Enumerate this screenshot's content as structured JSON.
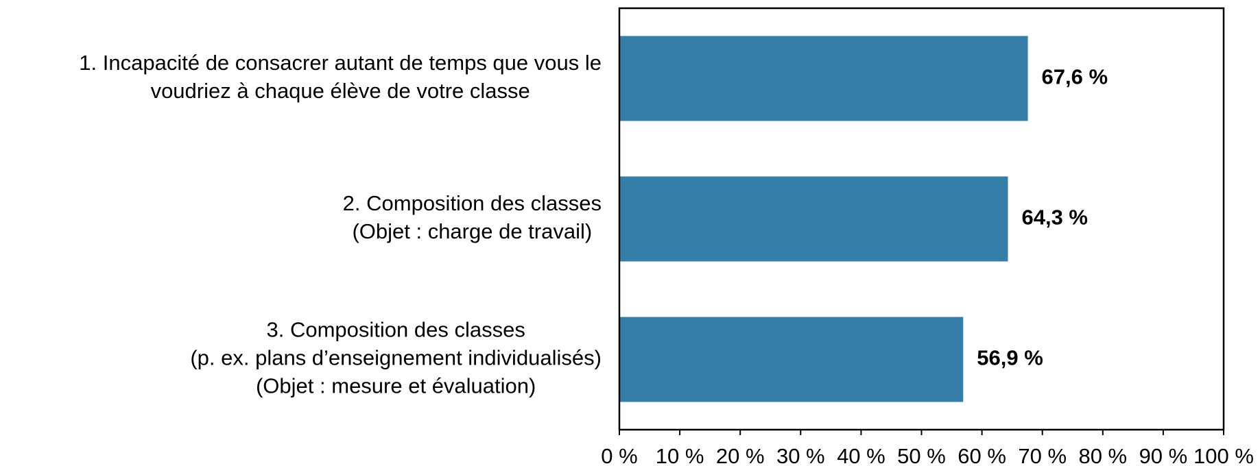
{
  "chart_data": {
    "type": "barh",
    "categories": [
      [
        "1. Incapacité de consacrer autant de temps que vous le",
        "voudriez à chaque élève de votre classe"
      ],
      [
        "2. Composition des classes",
        "(Objet : charge de travail)"
      ],
      [
        "3. Composition des classes",
        "(p. ex. plans d’enseignement individualisés)",
        "(Objet : mesure et évaluation)"
      ]
    ],
    "values": [
      67.6,
      64.3,
      56.9
    ],
    "value_labels": [
      "67,6 %",
      "64,3 %",
      "56,9 %"
    ],
    "color": "#357ea8",
    "xlim": [
      0,
      100
    ],
    "xticks": [
      {
        "value": 0,
        "label": "0 %"
      },
      {
        "value": 10,
        "label": "10 %"
      },
      {
        "value": 20,
        "label": "20 %"
      },
      {
        "value": 30,
        "label": "30 %"
      },
      {
        "value": 40,
        "label": "40 %"
      },
      {
        "value": 50,
        "label": "50 %"
      },
      {
        "value": 60,
        "label": "60 %"
      },
      {
        "value": 70,
        "label": "70 %"
      },
      {
        "value": 80,
        "label": "80 %"
      },
      {
        "value": 90,
        "label": "90 %"
      },
      {
        "value": 100,
        "label": "100 %"
      }
    ],
    "grid": false
  }
}
